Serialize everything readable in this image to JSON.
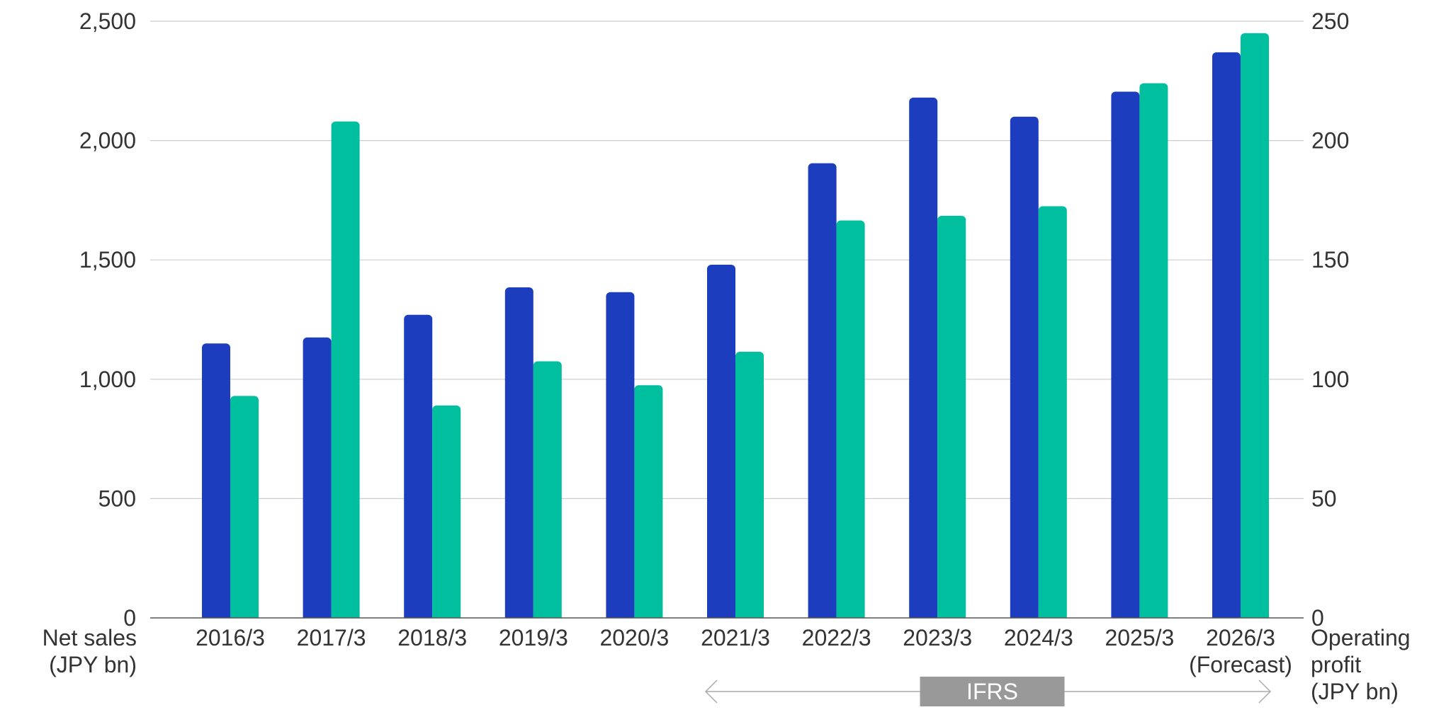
{
  "chart_data": {
    "type": "bar",
    "categories": [
      "2016/3",
      "2017/3",
      "2018/3",
      "2019/3",
      "2020/3",
      "2021/3",
      "2022/3",
      "2023/3",
      "2024/3",
      "2025/3",
      "2026/3"
    ],
    "category_sublabels": [
      "",
      "",
      "",
      "",
      "",
      "",
      "",
      "",
      "",
      "",
      "(Forecast)"
    ],
    "series": [
      {
        "name": "Net sales",
        "axis": "left",
        "color": "#1c3dbd",
        "values": [
          1150,
          1175,
          1270,
          1385,
          1365,
          1480,
          1905,
          2180,
          2100,
          2205,
          2370
        ]
      },
      {
        "name": "Operating profit",
        "axis": "right",
        "color": "#00bf9f",
        "values": [
          93,
          208,
          89,
          107.5,
          97.5,
          111.5,
          166.5,
          168.5,
          172.5,
          224,
          245
        ]
      }
    ],
    "y_left": {
      "label_lines": [
        "Net sales",
        "(JPY bn)"
      ],
      "ylim": [
        0,
        2500
      ],
      "ticks": [
        0,
        500,
        1000,
        1500,
        2000,
        2500
      ],
      "tick_labels": [
        "0",
        "500",
        "1,000",
        "1,500",
        "2,000",
        "2,500"
      ]
    },
    "y_right": {
      "label_lines": [
        "Operating",
        "profit",
        "(JPY bn)"
      ],
      "ylim": [
        0,
        250
      ],
      "ticks": [
        0,
        50,
        100,
        150,
        200,
        250
      ],
      "tick_labels": [
        "0",
        "50",
        "100",
        "150",
        "200",
        "250"
      ]
    },
    "grid": true,
    "annotation": {
      "text": "IFRS",
      "from_category": "2021/3",
      "to_category": "2026/3",
      "color": "#999999"
    }
  }
}
